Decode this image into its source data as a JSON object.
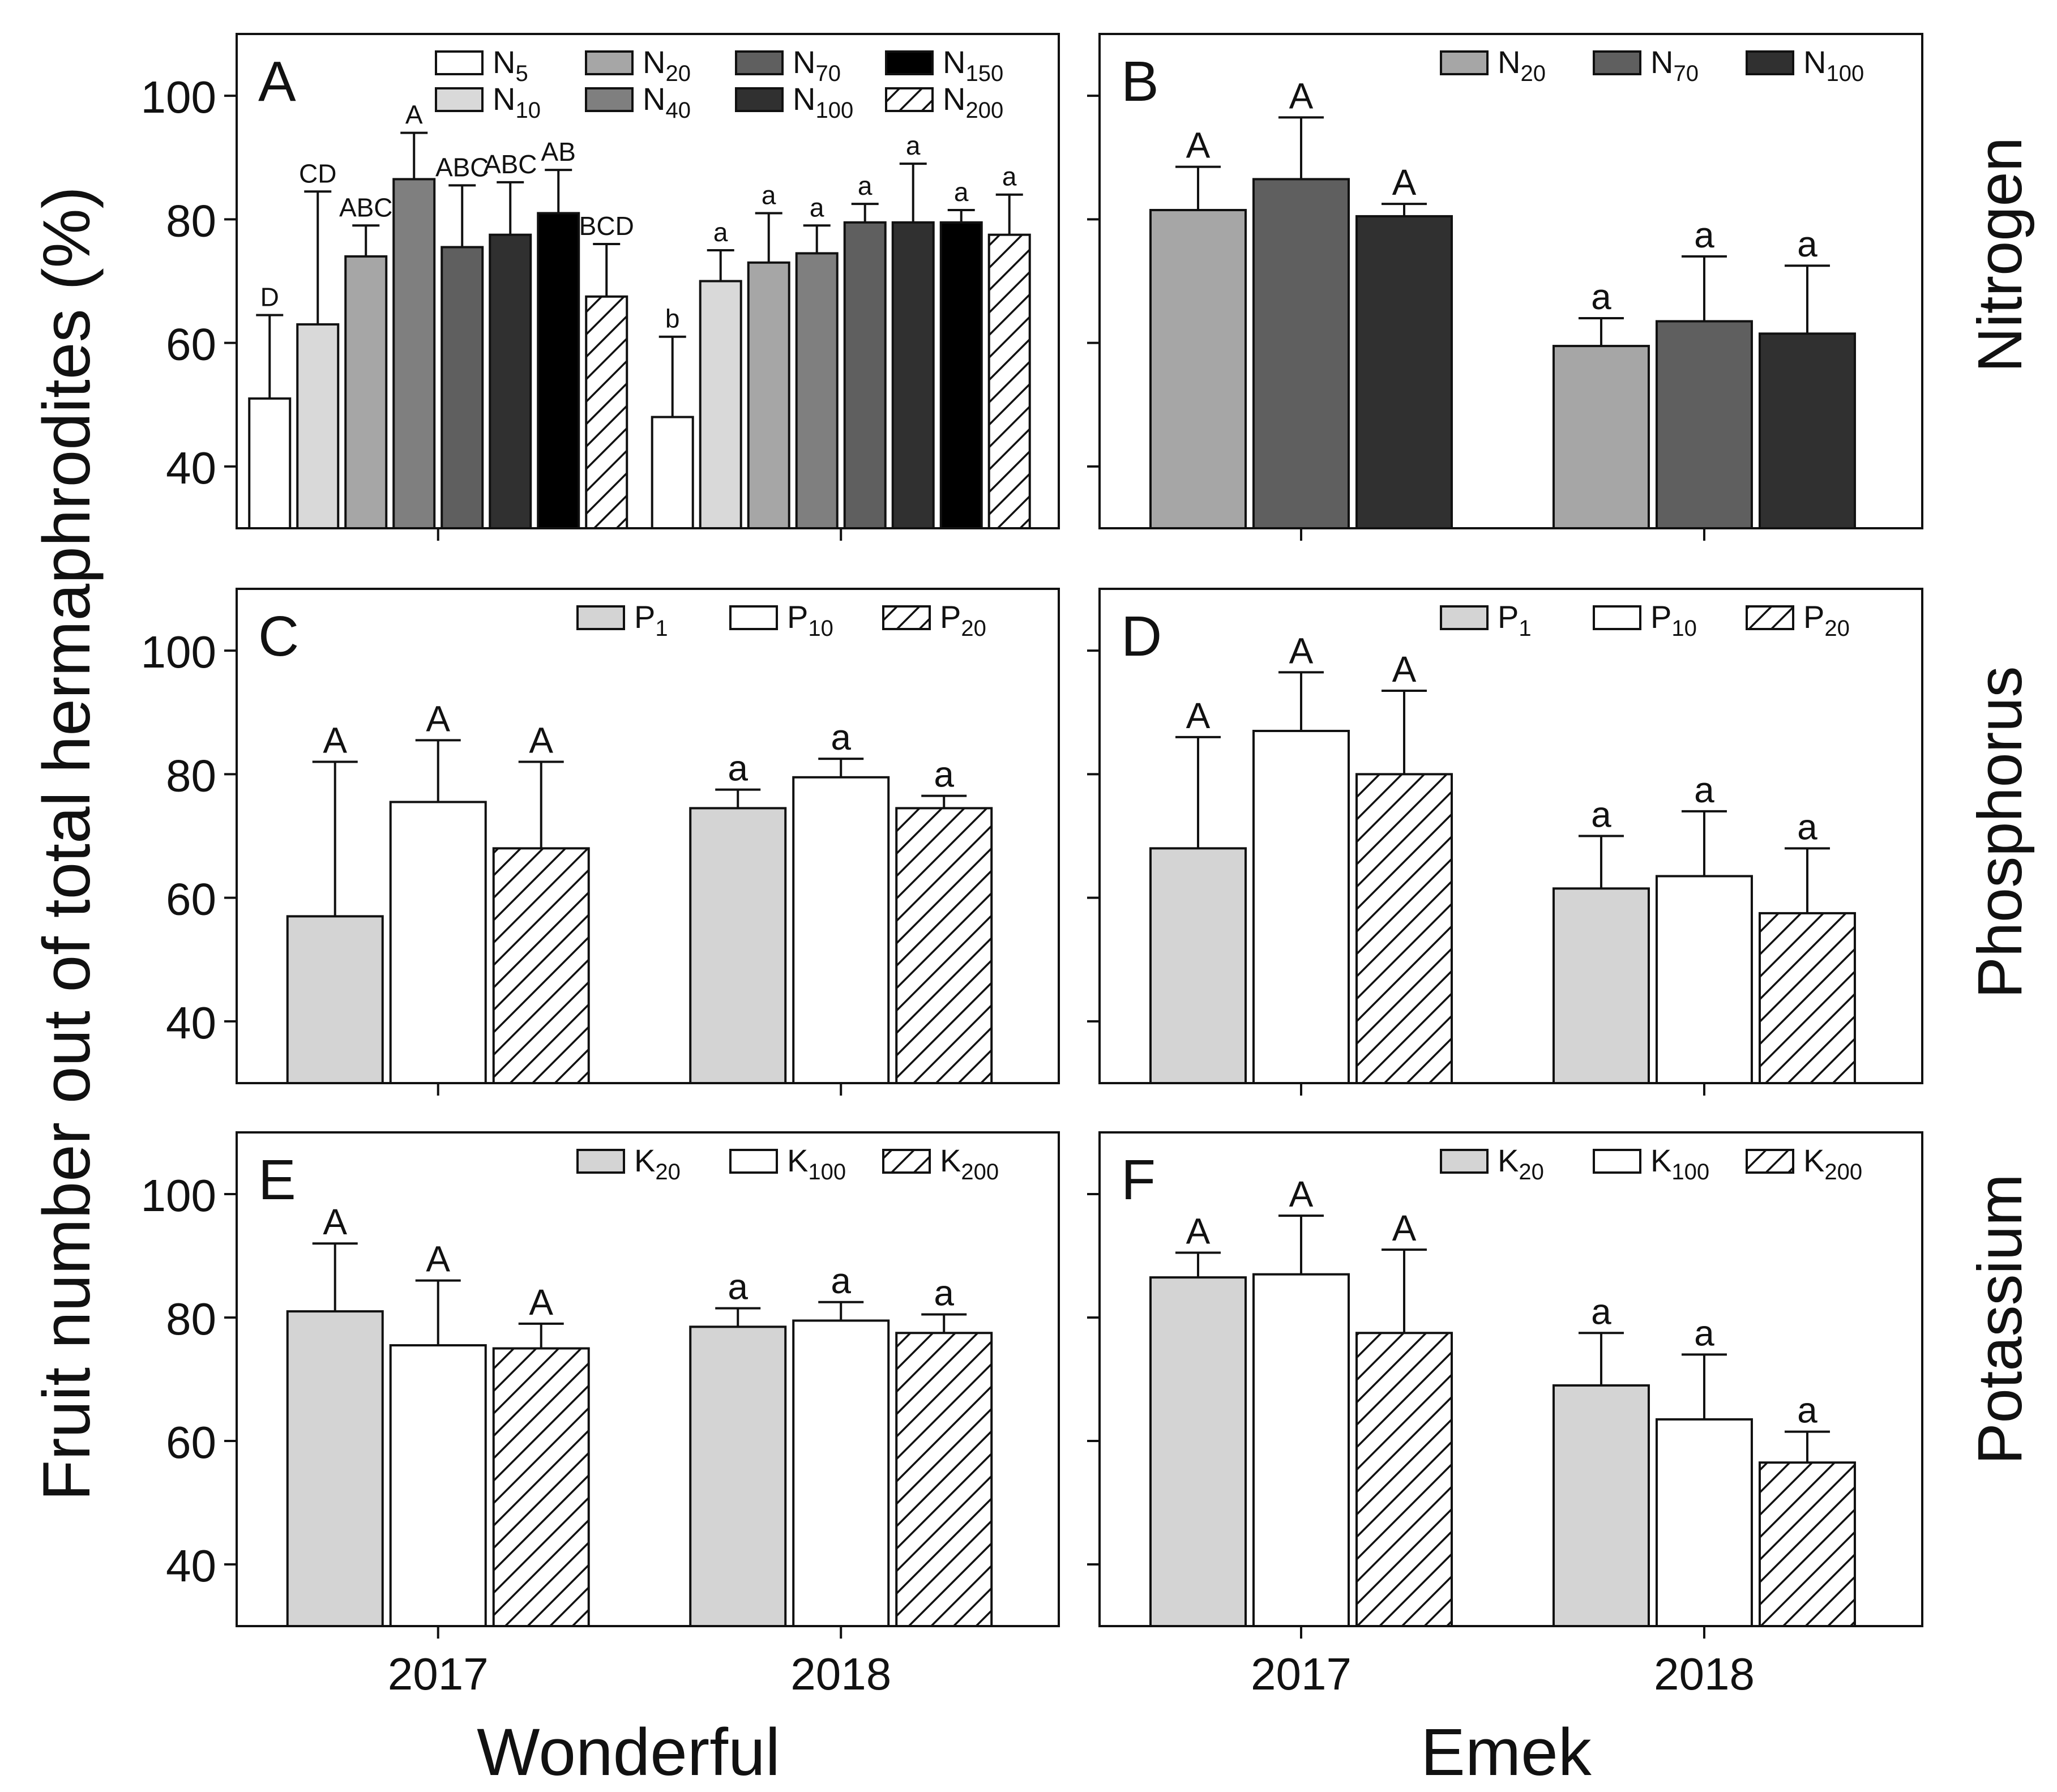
{
  "figure": {
    "y_axis_label": "Fruit number out of total hermaphrodites (%)",
    "column_labels": [
      "Wonderful",
      "Emek"
    ],
    "row_labels": [
      "Nitrogen",
      "Phosphorus",
      "Potassium"
    ],
    "x_tick_labels": [
      "2017",
      "2018"
    ],
    "y_tick_labels": [
      "40",
      "60",
      "80",
      "100"
    ]
  },
  "colors": {
    "N5": "#ffffff",
    "N10": "#d9d9d9",
    "N20": "#a6a6a6",
    "N40": "#7f7f7f",
    "N70": "#5f5f5f",
    "N100": "#303030",
    "N150": "#000000",
    "N200": "hatch",
    "light_gray": "#d4d4d4",
    "white": "#ffffff"
  },
  "chart_data": [
    {
      "panel": "A",
      "type": "bar",
      "cultivar": "Wonderful",
      "nutrient": "Nitrogen",
      "ylim": [
        30,
        110
      ],
      "yticks": [
        40,
        60,
        80,
        100
      ],
      "categories": [
        "2017",
        "2018"
      ],
      "legend_cols": 4,
      "series": [
        {
          "name": "N",
          "sub": "5",
          "fill": "N5",
          "values": [
            51,
            48
          ],
          "errors": [
            64.5,
            61
          ],
          "letters": [
            "D",
            "b"
          ]
        },
        {
          "name": "N",
          "sub": "10",
          "fill": "N10",
          "values": [
            63,
            70
          ],
          "errors": [
            84.5,
            75
          ],
          "letters": [
            "CD",
            "a"
          ]
        },
        {
          "name": "N",
          "sub": "20",
          "fill": "N20",
          "values": [
            74,
            73
          ],
          "errors": [
            79,
            81
          ],
          "letters": [
            "ABC",
            "a"
          ]
        },
        {
          "name": "N",
          "sub": "40",
          "fill": "N40",
          "values": [
            86.5,
            74.5
          ],
          "errors": [
            94,
            79
          ],
          "letters": [
            "A",
            "a"
          ]
        },
        {
          "name": "N",
          "sub": "70",
          "fill": "N70",
          "values": [
            75.5,
            79.5
          ],
          "errors": [
            85.5,
            82.5
          ],
          "letters": [
            "ABC",
            "a"
          ]
        },
        {
          "name": "N",
          "sub": "100",
          "fill": "N100",
          "values": [
            77.5,
            79.5
          ],
          "errors": [
            86,
            89
          ],
          "letters": [
            "ABC",
            "a"
          ]
        },
        {
          "name": "N",
          "sub": "150",
          "fill": "N150",
          "values": [
            81,
            79.5
          ],
          "errors": [
            88,
            81.5
          ],
          "letters": [
            "AB",
            "a"
          ]
        },
        {
          "name": "N",
          "sub": "200",
          "fill": "N200",
          "values": [
            67.5,
            77.5
          ],
          "errors": [
            76,
            84
          ],
          "letters": [
            "BCD",
            "a"
          ]
        }
      ]
    },
    {
      "panel": "B",
      "type": "bar",
      "cultivar": "Emek",
      "nutrient": "Nitrogen",
      "ylim": [
        30,
        110
      ],
      "yticks": [
        40,
        60,
        80,
        100
      ],
      "categories": [
        "2017",
        "2018"
      ],
      "legend_cols": 3,
      "series": [
        {
          "name": "N",
          "sub": "20",
          "fill": "N20",
          "values": [
            81.5,
            59.5
          ],
          "errors": [
            88.5,
            64
          ],
          "letters": [
            "A",
            "a"
          ]
        },
        {
          "name": "N",
          "sub": "70",
          "fill": "N70",
          "values": [
            86.5,
            63.5
          ],
          "errors": [
            96.5,
            74
          ],
          "letters": [
            "A",
            "a"
          ]
        },
        {
          "name": "N",
          "sub": "100",
          "fill": "N100",
          "values": [
            80.5,
            61.5
          ],
          "errors": [
            82.5,
            72.5
          ],
          "letters": [
            "A",
            "a"
          ]
        }
      ]
    },
    {
      "panel": "C",
      "type": "bar",
      "cultivar": "Wonderful",
      "nutrient": "Phosphorus",
      "ylim": [
        30,
        110
      ],
      "yticks": [
        40,
        60,
        80,
        100
      ],
      "categories": [
        "2017",
        "2018"
      ],
      "legend_cols": 3,
      "series": [
        {
          "name": "P",
          "sub": "1",
          "fill": "light_gray",
          "values": [
            57,
            74.5
          ],
          "errors": [
            82,
            77.5
          ],
          "letters": [
            "A",
            "a"
          ]
        },
        {
          "name": "P",
          "sub": "10",
          "fill": "white",
          "values": [
            75.5,
            79.5
          ],
          "errors": [
            85.5,
            82.5
          ],
          "letters": [
            "A",
            "a"
          ]
        },
        {
          "name": "P",
          "sub": "20",
          "fill": "N200",
          "values": [
            68,
            74.5
          ],
          "errors": [
            82,
            76.5
          ],
          "letters": [
            "A",
            "a"
          ]
        }
      ]
    },
    {
      "panel": "D",
      "type": "bar",
      "cultivar": "Emek",
      "nutrient": "Phosphorus",
      "ylim": [
        30,
        110
      ],
      "yticks": [
        40,
        60,
        80,
        100
      ],
      "categories": [
        "2017",
        "2018"
      ],
      "legend_cols": 3,
      "series": [
        {
          "name": "P",
          "sub": "1",
          "fill": "light_gray",
          "values": [
            68,
            61.5
          ],
          "errors": [
            86,
            70
          ],
          "letters": [
            "A",
            "a"
          ]
        },
        {
          "name": "P",
          "sub": "10",
          "fill": "white",
          "values": [
            87,
            63.5
          ],
          "errors": [
            96.5,
            74
          ],
          "letters": [
            "A",
            "a"
          ]
        },
        {
          "name": "P",
          "sub": "20",
          "fill": "N200",
          "values": [
            80,
            57.5
          ],
          "errors": [
            93.5,
            68
          ],
          "letters": [
            "A",
            "a"
          ]
        }
      ]
    },
    {
      "panel": "E",
      "type": "bar",
      "cultivar": "Wonderful",
      "nutrient": "Potassium",
      "ylim": [
        30,
        110
      ],
      "yticks": [
        40,
        60,
        80,
        100
      ],
      "categories": [
        "2017",
        "2018"
      ],
      "legend_cols": 3,
      "series": [
        {
          "name": "K",
          "sub": "20",
          "fill": "light_gray",
          "values": [
            81,
            78.5
          ],
          "errors": [
            92,
            81.5
          ],
          "letters": [
            "A",
            "a"
          ]
        },
        {
          "name": "K",
          "sub": "100",
          "fill": "white",
          "values": [
            75.5,
            79.5
          ],
          "errors": [
            86,
            82.5
          ],
          "letters": [
            "A",
            "a"
          ]
        },
        {
          "name": "K",
          "sub": "200",
          "fill": "N200",
          "values": [
            75,
            77.5
          ],
          "errors": [
            79,
            80.5
          ],
          "letters": [
            "A",
            "a"
          ]
        }
      ]
    },
    {
      "panel": "F",
      "type": "bar",
      "cultivar": "Emek",
      "nutrient": "Potassium",
      "ylim": [
        30,
        110
      ],
      "yticks": [
        40,
        60,
        80,
        100
      ],
      "categories": [
        "2017",
        "2018"
      ],
      "legend_cols": 3,
      "series": [
        {
          "name": "K",
          "sub": "20",
          "fill": "light_gray",
          "values": [
            86.5,
            69
          ],
          "errors": [
            90.5,
            77.5
          ],
          "letters": [
            "A",
            "a"
          ]
        },
        {
          "name": "K",
          "sub": "100",
          "fill": "white",
          "values": [
            87,
            63.5
          ],
          "errors": [
            96.5,
            74
          ],
          "letters": [
            "A",
            "a"
          ]
        },
        {
          "name": "K",
          "sub": "200",
          "fill": "N200",
          "values": [
            77.5,
            56.5
          ],
          "errors": [
            91,
            61.5
          ],
          "letters": [
            "A",
            "a"
          ]
        }
      ]
    }
  ]
}
